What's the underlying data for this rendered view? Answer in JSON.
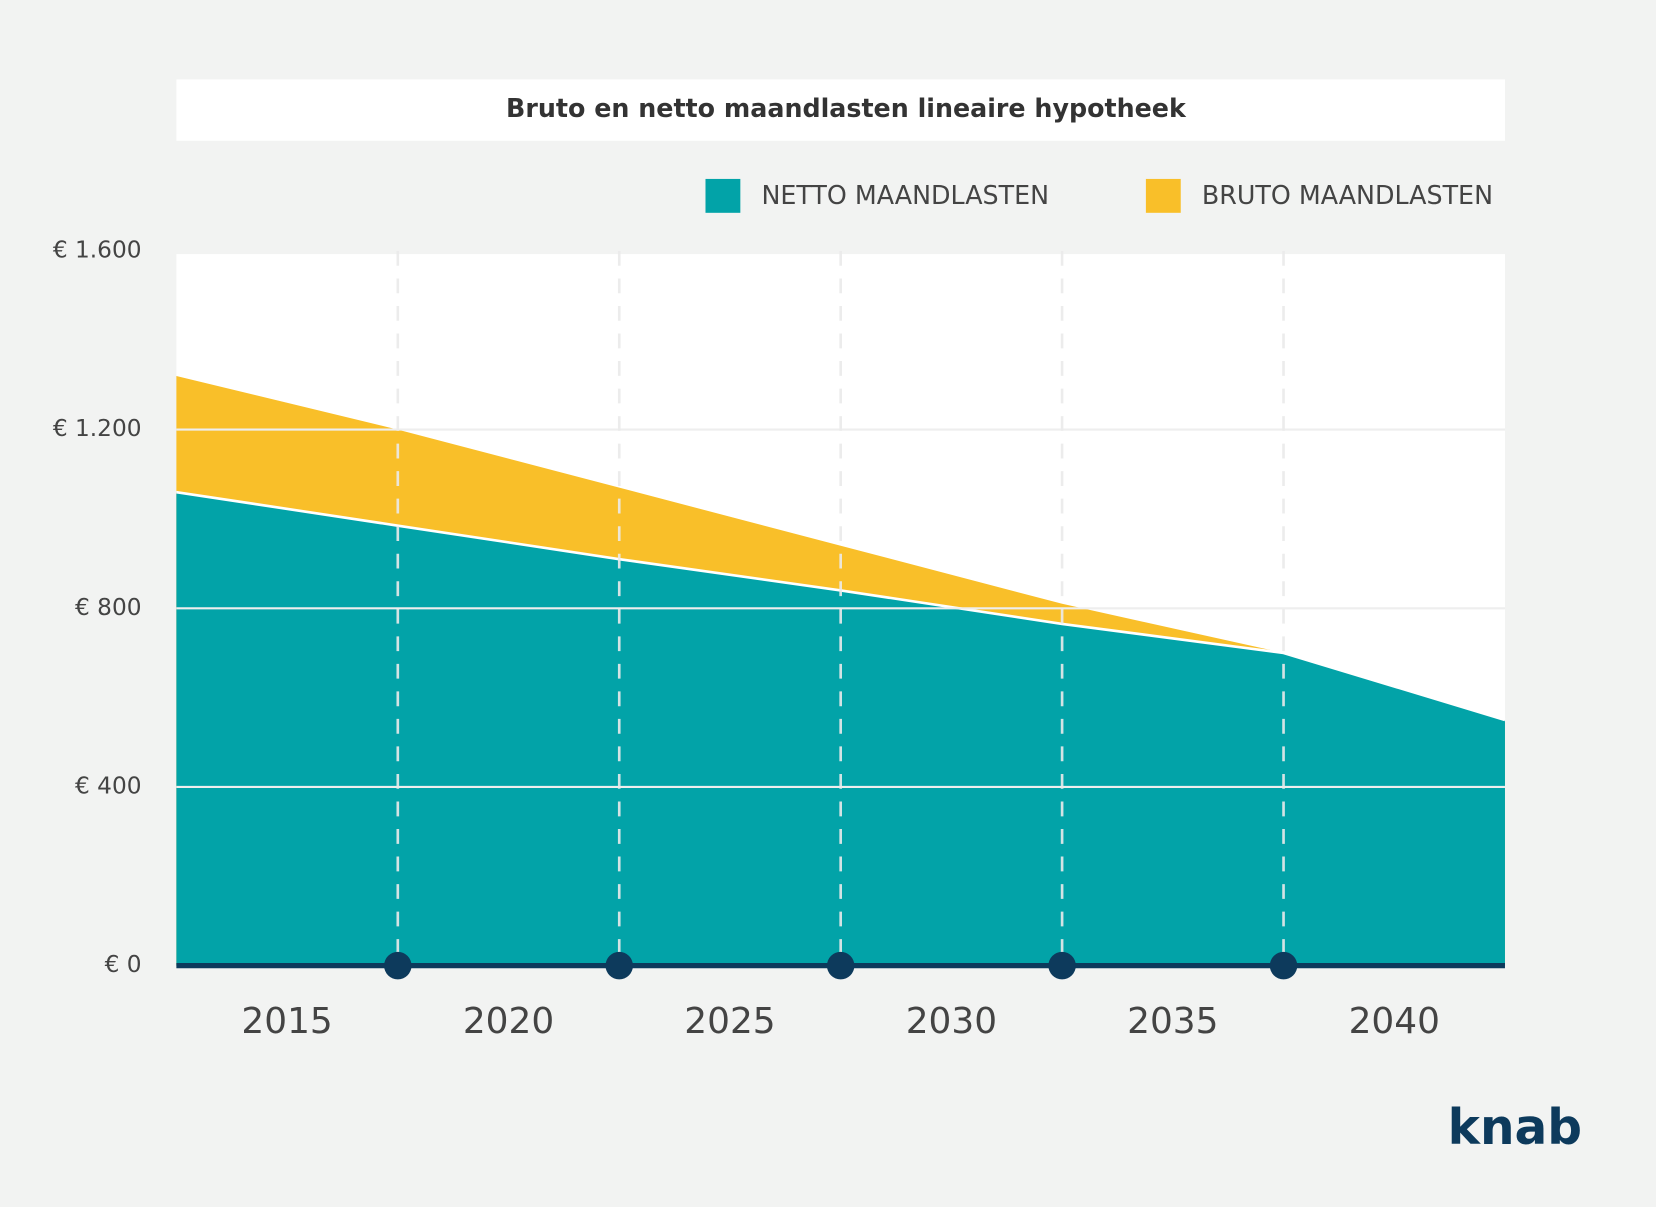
{
  "chart_data": {
    "type": "area",
    "title": "Bruto en netto maandlasten lineaire hypotheek",
    "x": [
      2012.5,
      2017.5,
      2022.5,
      2027.5,
      2032.5,
      2037.5,
      2042.5
    ],
    "series": [
      {
        "name": "NETTO MAANDLASTEN",
        "color": "#02a3a8",
        "values": [
          1060,
          985,
          910,
          840,
          765,
          700,
          550
        ]
      },
      {
        "name": "BRUTO MAANDLASTEN",
        "color": "#f9bf29",
        "values": [
          1320,
          1200,
          1070,
          940,
          810,
          700,
          550
        ]
      }
    ],
    "xlim": [
      2012.5,
      2042.5
    ],
    "xticks": [
      2015,
      2020,
      2025,
      2030,
      2035,
      2040
    ],
    "ylim": [
      0,
      1600
    ],
    "yticks": [
      {
        "value": 0,
        "label": "€ 0"
      },
      {
        "value": 400,
        "label": "€ 400"
      },
      {
        "value": 800,
        "label": "€ 800"
      },
      {
        "value": 1200,
        "label": "€ 1.200"
      },
      {
        "value": 1600,
        "label": "€ 1.600"
      }
    ],
    "grid": true,
    "legend": "top-right",
    "brand": "knab"
  }
}
